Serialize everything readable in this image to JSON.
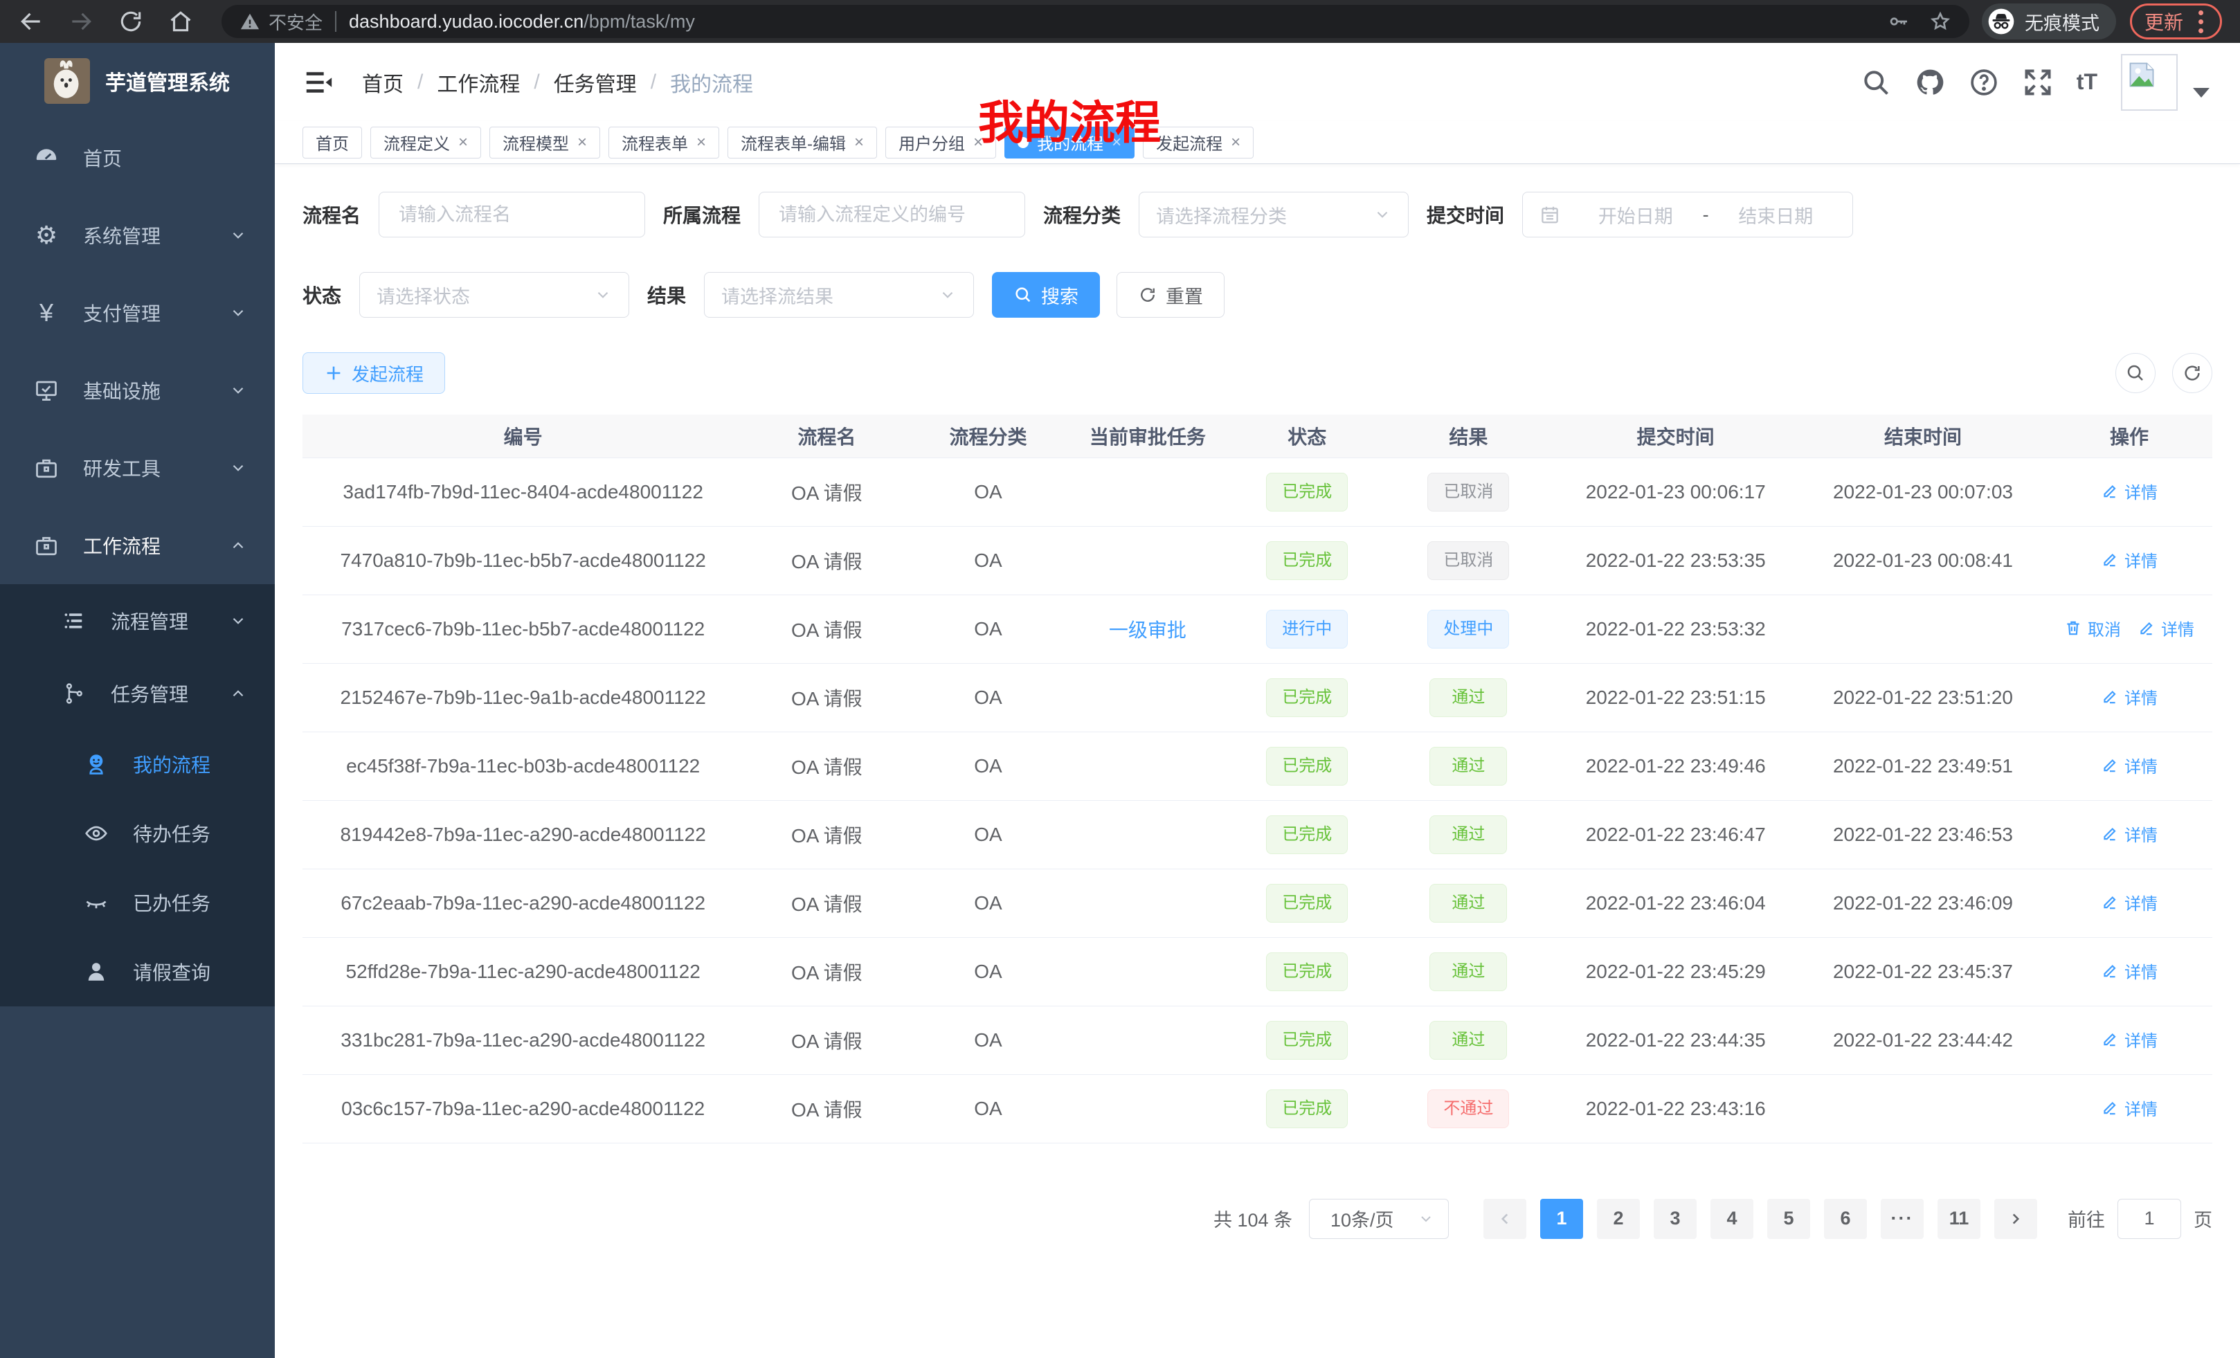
{
  "browser": {
    "security_label": "不安全",
    "url_host": "dashboard.yudao.iocoder.cn",
    "url_path": "/bpm/task/my",
    "incognito_label": "无痕模式",
    "update_label": "更新"
  },
  "sidebar": {
    "app_title": "芋道管理系统",
    "items": [
      {
        "label": "首页"
      },
      {
        "label": "系统管理"
      },
      {
        "label": "支付管理"
      },
      {
        "label": "基础设施"
      },
      {
        "label": "研发工具"
      },
      {
        "label": "工作流程"
      },
      {
        "label": "流程管理"
      },
      {
        "label": "任务管理"
      },
      {
        "label": "我的流程"
      },
      {
        "label": "待办任务"
      },
      {
        "label": "已办任务"
      },
      {
        "label": "请假查询"
      }
    ]
  },
  "header": {
    "breadcrumb": [
      "首页",
      "工作流程",
      "任务管理",
      "我的流程"
    ],
    "annotation": "我的流程",
    "text_size_icon_label": "tT"
  },
  "tabs": [
    {
      "label": "首页",
      "closable": false,
      "active": false
    },
    {
      "label": "流程定义",
      "closable": true,
      "active": false
    },
    {
      "label": "流程模型",
      "closable": true,
      "active": false
    },
    {
      "label": "流程表单",
      "closable": true,
      "active": false
    },
    {
      "label": "流程表单-编辑",
      "closable": true,
      "active": false
    },
    {
      "label": "用户分组",
      "closable": true,
      "active": false
    },
    {
      "label": "我的流程",
      "closable": true,
      "active": true
    },
    {
      "label": "发起流程",
      "closable": true,
      "active": false
    }
  ],
  "filters": {
    "name_label": "流程名",
    "name_placeholder": "请输入流程名",
    "definition_label": "所属流程",
    "definition_placeholder": "请输入流程定义的编号",
    "category_label": "流程分类",
    "category_placeholder": "请选择流程分类",
    "submit_time_label": "提交时间",
    "start_placeholder": "开始日期",
    "range_separator": "-",
    "end_placeholder": "结束日期",
    "status_label": "状态",
    "status_placeholder": "请选择状态",
    "result_label": "结果",
    "result_placeholder": "请选择流结果",
    "search_label": "搜索",
    "reset_label": "重置"
  },
  "toolbar": {
    "create_label": "发起流程"
  },
  "table": {
    "columns": [
      "编号",
      "流程名",
      "流程分类",
      "当前审批任务",
      "状态",
      "结果",
      "提交时间",
      "结束时间",
      "操作"
    ],
    "rows": [
      {
        "id": "3ad174fb-7b9d-11ec-8404-acde48001122",
        "name": "OA 请假",
        "category": "OA",
        "task": "",
        "status": {
          "label": "已完成",
          "type": "success"
        },
        "result": {
          "label": "已取消",
          "type": "info"
        },
        "submit_time": "2022-01-23 00:06:17",
        "end_time": "2022-01-23 00:07:03",
        "actions": [
          {
            "label": "详情",
            "name": "detail-action",
            "icon": "edit"
          }
        ]
      },
      {
        "id": "7470a810-7b9b-11ec-b5b7-acde48001122",
        "name": "OA 请假",
        "category": "OA",
        "task": "",
        "status": {
          "label": "已完成",
          "type": "success"
        },
        "result": {
          "label": "已取消",
          "type": "info"
        },
        "submit_time": "2022-01-22 23:53:35",
        "end_time": "2022-01-23 00:08:41",
        "actions": [
          {
            "label": "详情",
            "name": "detail-action",
            "icon": "edit"
          }
        ]
      },
      {
        "id": "7317cec6-7b9b-11ec-b5b7-acde48001122",
        "name": "OA 请假",
        "category": "OA",
        "task": "一级审批",
        "status": {
          "label": "进行中",
          "type": "primary"
        },
        "result": {
          "label": "处理中",
          "type": "primary"
        },
        "submit_time": "2022-01-22 23:53:32",
        "end_time": "",
        "actions": [
          {
            "label": "取消",
            "name": "cancel-action",
            "icon": "trash"
          },
          {
            "label": "详情",
            "name": "detail-action",
            "icon": "edit"
          }
        ]
      },
      {
        "id": "2152467e-7b9b-11ec-9a1b-acde48001122",
        "name": "OA 请假",
        "category": "OA",
        "task": "",
        "status": {
          "label": "已完成",
          "type": "success"
        },
        "result": {
          "label": "通过",
          "type": "success"
        },
        "submit_time": "2022-01-22 23:51:15",
        "end_time": "2022-01-22 23:51:20",
        "actions": [
          {
            "label": "详情",
            "name": "detail-action",
            "icon": "edit"
          }
        ]
      },
      {
        "id": "ec45f38f-7b9a-11ec-b03b-acde48001122",
        "name": "OA 请假",
        "category": "OA",
        "task": "",
        "status": {
          "label": "已完成",
          "type": "success"
        },
        "result": {
          "label": "通过",
          "type": "success"
        },
        "submit_time": "2022-01-22 23:49:46",
        "end_time": "2022-01-22 23:49:51",
        "actions": [
          {
            "label": "详情",
            "name": "detail-action",
            "icon": "edit"
          }
        ]
      },
      {
        "id": "819442e8-7b9a-11ec-a290-acde48001122",
        "name": "OA 请假",
        "category": "OA",
        "task": "",
        "status": {
          "label": "已完成",
          "type": "success"
        },
        "result": {
          "label": "通过",
          "type": "success"
        },
        "submit_time": "2022-01-22 23:46:47",
        "end_time": "2022-01-22 23:46:53",
        "actions": [
          {
            "label": "详情",
            "name": "detail-action",
            "icon": "edit"
          }
        ]
      },
      {
        "id": "67c2eaab-7b9a-11ec-a290-acde48001122",
        "name": "OA 请假",
        "category": "OA",
        "task": "",
        "status": {
          "label": "已完成",
          "type": "success"
        },
        "result": {
          "label": "通过",
          "type": "success"
        },
        "submit_time": "2022-01-22 23:46:04",
        "end_time": "2022-01-22 23:46:09",
        "actions": [
          {
            "label": "详情",
            "name": "detail-action",
            "icon": "edit"
          }
        ]
      },
      {
        "id": "52ffd28e-7b9a-11ec-a290-acde48001122",
        "name": "OA 请假",
        "category": "OA",
        "task": "",
        "status": {
          "label": "已完成",
          "type": "success"
        },
        "result": {
          "label": "通过",
          "type": "success"
        },
        "submit_time": "2022-01-22 23:45:29",
        "end_time": "2022-01-22 23:45:37",
        "actions": [
          {
            "label": "详情",
            "name": "detail-action",
            "icon": "edit"
          }
        ]
      },
      {
        "id": "331bc281-7b9a-11ec-a290-acde48001122",
        "name": "OA 请假",
        "category": "OA",
        "task": "",
        "status": {
          "label": "已完成",
          "type": "success"
        },
        "result": {
          "label": "通过",
          "type": "success"
        },
        "submit_time": "2022-01-22 23:44:35",
        "end_time": "2022-01-22 23:44:42",
        "actions": [
          {
            "label": "详情",
            "name": "detail-action",
            "icon": "edit"
          }
        ]
      },
      {
        "id": "03c6c157-7b9a-11ec-a290-acde48001122",
        "name": "OA 请假",
        "category": "OA",
        "task": "",
        "status": {
          "label": "已完成",
          "type": "success"
        },
        "result": {
          "label": "不通过",
          "type": "danger"
        },
        "submit_time": "2022-01-22 23:43:16",
        "end_time": "",
        "actions": [
          {
            "label": "详情",
            "name": "detail-action",
            "icon": "edit"
          }
        ]
      }
    ]
  },
  "pagination": {
    "total_label": "共 104 条",
    "page_size_label": "10条/页",
    "pages": [
      {
        "label": "1",
        "active": true
      },
      {
        "label": "2"
      },
      {
        "label": "3"
      },
      {
        "label": "4"
      },
      {
        "label": "5"
      },
      {
        "label": "6"
      },
      {
        "label": "···",
        "dots": true
      },
      {
        "label": "11"
      }
    ],
    "goto_label": "前往",
    "goto_value": "1",
    "goto_suffix": "页"
  },
  "colors": {
    "primary": "#409eff",
    "success": "#67c23a",
    "danger": "#f56c6c",
    "info": "#909399",
    "sidebar_bg": "#304156",
    "submenu_bg": "#1f2d3d",
    "annotation_red": "#f20d0d"
  }
}
